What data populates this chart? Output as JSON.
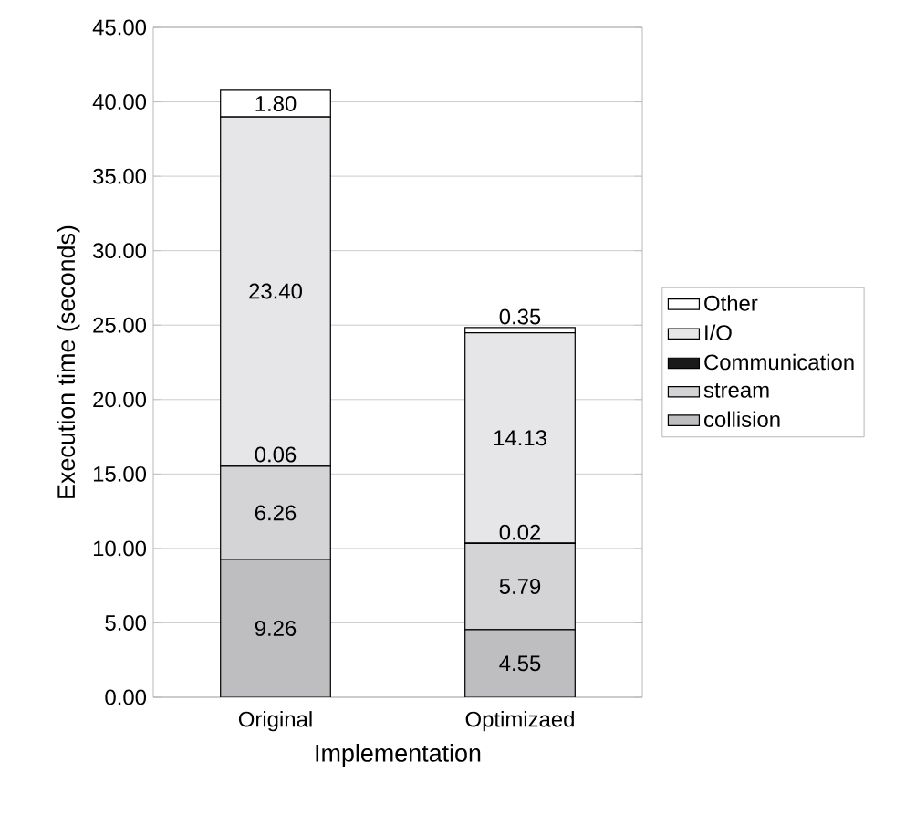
{
  "chart_data": {
    "type": "bar",
    "stacked": true,
    "xlabel": "Implementation",
    "ylabel": "Execution time (seconds)",
    "categories": [
      "Original",
      "Optimizaed"
    ],
    "series": [
      {
        "name": "collision",
        "color": "#bebec0",
        "values": [
          9.26,
          4.55
        ],
        "value_labels": [
          "9.26",
          "4.55"
        ]
      },
      {
        "name": "stream",
        "color": "#d4d4d6",
        "values": [
          6.26,
          5.79
        ],
        "value_labels": [
          "6.26",
          "5.79"
        ]
      },
      {
        "name": "Communication",
        "color": "#1a1a1a",
        "values": [
          0.06,
          0.02
        ],
        "value_labels": [
          "0.06",
          "0.02"
        ]
      },
      {
        "name": "I/O",
        "color": "#e6e6e8",
        "values": [
          23.4,
          14.13
        ],
        "value_labels": [
          "23.40",
          "14.13"
        ]
      },
      {
        "name": "Other",
        "color": "#ffffff",
        "values": [
          1.8,
          0.35
        ],
        "value_labels": [
          "1.80",
          "0.35"
        ]
      }
    ],
    "ylim": [
      0,
      45
    ],
    "yticks": [
      {
        "value": 0,
        "label": "0.00"
      },
      {
        "value": 5,
        "label": "5.00"
      },
      {
        "value": 10,
        "label": "10.00"
      },
      {
        "value": 15,
        "label": "15.00"
      },
      {
        "value": 20,
        "label": "20.00"
      },
      {
        "value": 25,
        "label": "25.00"
      },
      {
        "value": 30,
        "label": "30.00"
      },
      {
        "value": 35,
        "label": "35.00"
      },
      {
        "value": 40,
        "label": "40.00"
      },
      {
        "value": 45,
        "label": "45.00"
      }
    ],
    "grid": "y",
    "legend": "right"
  }
}
